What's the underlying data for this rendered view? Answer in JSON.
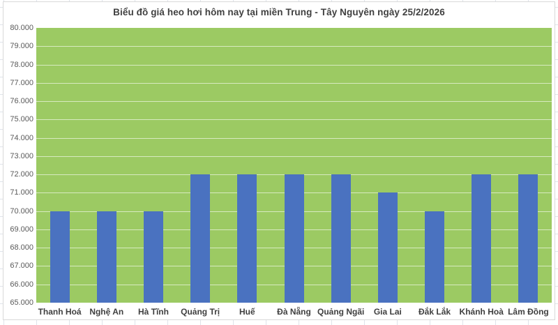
{
  "chart_data": {
    "type": "bar",
    "title": "Biểu đồ giá heo hơi hôm nay tại miền Trung - Tây Nguyên ngày 25/2/2026",
    "categories": [
      "Thanh Hoá",
      "Nghệ An",
      "Hà Tĩnh",
      "Quảng Trị",
      "Huế",
      "Đà Nẵng",
      "Quảng Ngãi",
      "Gia Lai",
      "Đắk Lắk",
      "Khánh Hoà",
      "Lâm Đồng"
    ],
    "values": [
      70000,
      70000,
      70000,
      72000,
      72000,
      72000,
      72000,
      71000,
      70000,
      72000,
      72000
    ],
    "xlabel": "",
    "ylabel": "",
    "ylim": [
      65000,
      80000
    ],
    "ytick_step": 1000,
    "ytick_labels": [
      "65.000",
      "66.000",
      "67.000",
      "68.000",
      "69.000",
      "70.000",
      "71.000",
      "72.000",
      "73.000",
      "74.000",
      "75.000",
      "76.000",
      "77.000",
      "78.000",
      "79.000",
      "80.000"
    ],
    "grid": "horizontal-major",
    "legend": "none",
    "colors": {
      "bar_fill": "#4a72c0",
      "plot_background": "#9cca63",
      "gridline": "rgba(255,255,255,0.6)",
      "title_text": "#404040",
      "ytick_text": "#595959",
      "xtick_text": "#3f3f3f",
      "chart_border": "#d9d9d9"
    }
  }
}
